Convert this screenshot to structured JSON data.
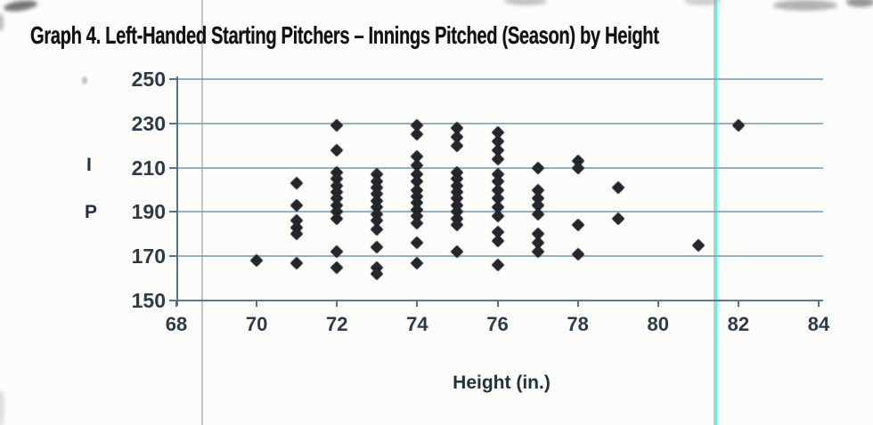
{
  "title": "Graph 4. Left-Handed Starting Pitchers – Innings Pitched (Season) by Height",
  "chart_data": {
    "type": "scatter",
    "title": "Graph 4. Left-Handed Starting Pitchers – Innings Pitched (Season) by Height",
    "xlabel": "Height (in.)",
    "ylabel": "IP",
    "ylabel_lines": [
      "I",
      "P"
    ],
    "xlim": [
      68,
      84
    ],
    "ylim": [
      150,
      250
    ],
    "x_ticks": [
      68,
      70,
      72,
      74,
      76,
      78,
      80,
      82,
      84
    ],
    "y_ticks": [
      150,
      170,
      190,
      210,
      230,
      250
    ],
    "grid": "horizontal",
    "legend": "none",
    "marker": "diamond",
    "points": [
      [
        70,
        168
      ],
      [
        71,
        203
      ],
      [
        71,
        193
      ],
      [
        71,
        186
      ],
      [
        71,
        183
      ],
      [
        71,
        180
      ],
      [
        71,
        167
      ],
      [
        72,
        229
      ],
      [
        72,
        218
      ],
      [
        72,
        208
      ],
      [
        72,
        205
      ],
      [
        72,
        202
      ],
      [
        72,
        199
      ],
      [
        72,
        196
      ],
      [
        72,
        193
      ],
      [
        72,
        190
      ],
      [
        72,
        187
      ],
      [
        72,
        172
      ],
      [
        72,
        165
      ],
      [
        73,
        207
      ],
      [
        73,
        204
      ],
      [
        73,
        201
      ],
      [
        73,
        198
      ],
      [
        73,
        195
      ],
      [
        73,
        192
      ],
      [
        73,
        189
      ],
      [
        73,
        186
      ],
      [
        73,
        182
      ],
      [
        73,
        174
      ],
      [
        73,
        165
      ],
      [
        73,
        162
      ],
      [
        74,
        229
      ],
      [
        74,
        225
      ],
      [
        74,
        215
      ],
      [
        74,
        211
      ],
      [
        74,
        207
      ],
      [
        74,
        204
      ],
      [
        74,
        200
      ],
      [
        74,
        197
      ],
      [
        74,
        194
      ],
      [
        74,
        191
      ],
      [
        74,
        188
      ],
      [
        74,
        185
      ],
      [
        74,
        176
      ],
      [
        74,
        167
      ],
      [
        75,
        228
      ],
      [
        75,
        224
      ],
      [
        75,
        220
      ],
      [
        75,
        208
      ],
      [
        75,
        205
      ],
      [
        75,
        202
      ],
      [
        75,
        199
      ],
      [
        75,
        196
      ],
      [
        75,
        193
      ],
      [
        75,
        190
      ],
      [
        75,
        187
      ],
      [
        75,
        184
      ],
      [
        75,
        172
      ],
      [
        76,
        226
      ],
      [
        76,
        222
      ],
      [
        76,
        218
      ],
      [
        76,
        214
      ],
      [
        76,
        207
      ],
      [
        76,
        204
      ],
      [
        76,
        200
      ],
      [
        76,
        196
      ],
      [
        76,
        192
      ],
      [
        76,
        188
      ],
      [
        76,
        181
      ],
      [
        76,
        177
      ],
      [
        76,
        166
      ],
      [
        77,
        210
      ],
      [
        77,
        200
      ],
      [
        77,
        196
      ],
      [
        77,
        193
      ],
      [
        77,
        189
      ],
      [
        77,
        180
      ],
      [
        77,
        176
      ],
      [
        77,
        172
      ],
      [
        78,
        213
      ],
      [
        78,
        210
      ],
      [
        78,
        184
      ],
      [
        78,
        171
      ],
      [
        79,
        201
      ],
      [
        79,
        187
      ],
      [
        81,
        175
      ],
      [
        82,
        229
      ]
    ]
  },
  "colors": {
    "marker": "#26262d",
    "gridline": "#7d9cb0",
    "axis": "#53718a",
    "tick_label": "#2d3b47",
    "title": "#121212",
    "background": "#fcfcfa",
    "scan_line_cyan": "#5ae9df",
    "scan_line_gray": "#8e9799"
  }
}
